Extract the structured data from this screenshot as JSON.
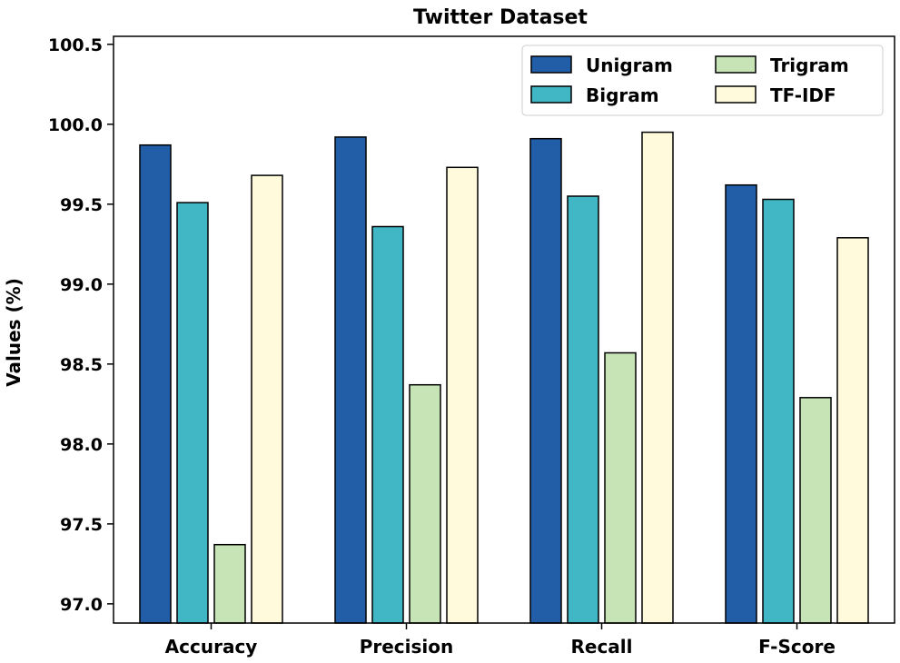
{
  "chart_data": {
    "type": "bar",
    "title": "Twitter Dataset",
    "xlabel": "",
    "ylabel": "Values (%)",
    "categories": [
      "Accuracy",
      "Precision",
      "Recall",
      "F-Score"
    ],
    "ylim": [
      96.88,
      100.55
    ],
    "yticks": [
      "97.0",
      "97.5",
      "98.0",
      "98.5",
      "99.0",
      "99.5",
      "100.0",
      "100.5"
    ],
    "series": [
      {
        "name": "Unigram",
        "color": "#225ea8",
        "values": [
          99.87,
          99.92,
          99.91,
          99.62
        ]
      },
      {
        "name": "Bigram",
        "color": "#41b6c4",
        "values": [
          99.51,
          99.36,
          99.55,
          99.53
        ]
      },
      {
        "name": "Trigram",
        "color": "#c7e4b7",
        "values": [
          97.37,
          98.37,
          98.57,
          98.29
        ]
      },
      {
        "name": "TF-IDF",
        "color": "#fefadb",
        "values": [
          99.68,
          99.73,
          99.95,
          99.29
        ]
      }
    ],
    "legend_position": "top-right",
    "grid": false
  }
}
